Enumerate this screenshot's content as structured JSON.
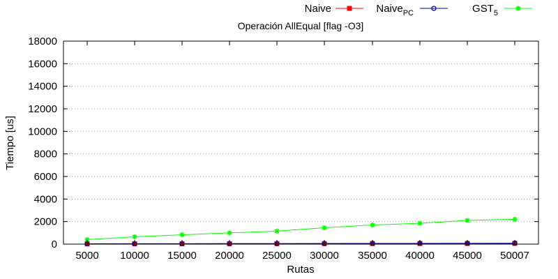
{
  "chart_data": {
    "type": "line",
    "title": "Operación AllEqual [flag -O3]",
    "xlabel": "Rutas",
    "ylabel": "Tiempo [us]",
    "categories": [
      "5000",
      "10000",
      "15000",
      "20000",
      "25000",
      "30000",
      "35000",
      "40000",
      "45000",
      "50007"
    ],
    "ylim": [
      0,
      18000
    ],
    "yticks": [
      0,
      2000,
      4000,
      6000,
      8000,
      10000,
      12000,
      14000,
      16000,
      18000
    ],
    "grid": "horizontal dotted",
    "legend_position": "top-right, outside plot",
    "series": [
      {
        "name": "Naive",
        "legend_label": {
          "text": "Naive",
          "sub": ""
        },
        "color": "#ff0000",
        "marker": "filled-square",
        "values": [
          20,
          25,
          30,
          35,
          40,
          45,
          50,
          55,
          60,
          65
        ]
      },
      {
        "name": "Naive_PC",
        "legend_label": {
          "text": "Naive",
          "sub": "PC"
        },
        "color": "#0000a0",
        "marker": "open-circle",
        "values": [
          30,
          35,
          40,
          45,
          50,
          55,
          60,
          65,
          70,
          80
        ]
      },
      {
        "name": "GST_5",
        "legend_label": {
          "text": "GST",
          "sub": "5"
        },
        "color": "#00ff00",
        "marker": "star",
        "values": [
          400,
          650,
          830,
          1000,
          1150,
          1450,
          1700,
          1850,
          2100,
          2200
        ]
      }
    ]
  }
}
